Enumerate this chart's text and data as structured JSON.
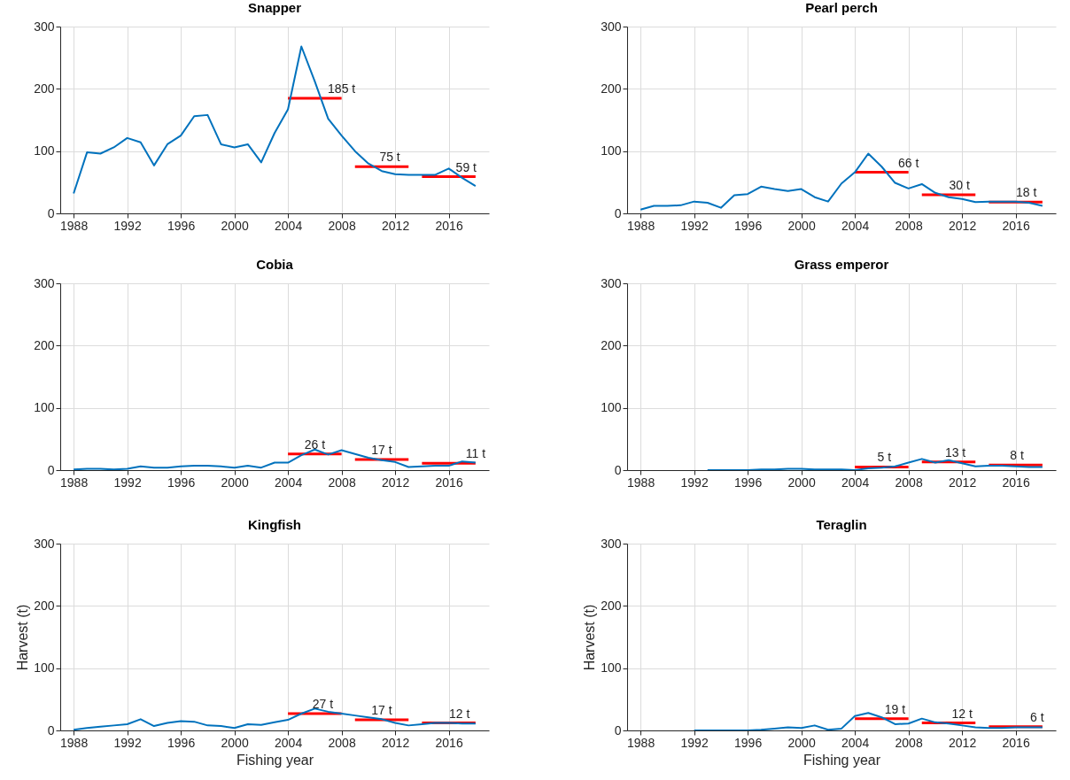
{
  "chart_data": [
    {
      "type": "line",
      "title": "Snapper",
      "x": [
        1988,
        1989,
        1990,
        1991,
        1992,
        1993,
        1994,
        1995,
        1996,
        1997,
        1998,
        1999,
        2000,
        2001,
        2002,
        2003,
        2004,
        2005,
        2006,
        2007,
        2008,
        2009,
        2010,
        2011,
        2012,
        2013,
        2014,
        2015,
        2016,
        2017,
        2018
      ],
      "xlim": [
        1987,
        2019
      ],
      "xticks": [
        1988,
        1992,
        1996,
        2000,
        2004,
        2008,
        2012,
        2016
      ],
      "ylim": [
        0,
        300
      ],
      "yticks": [
        0,
        100,
        200,
        300
      ],
      "grid": true,
      "series": [
        {
          "color": "#0072bd",
          "values": [
            32,
            98,
            96,
            106,
            121,
            114,
            77,
            111,
            125,
            156,
            158,
            111,
            106,
            111,
            82,
            129,
            167,
            268,
            212,
            152,
            125,
            100,
            80,
            68,
            63,
            62,
            62,
            62,
            72,
            57,
            44
          ]
        },
        {
          "type": "line",
          "color": "#ff0000",
          "x": [
            2004,
            2008
          ],
          "values": [
            185,
            185
          ]
        },
        {
          "type": "line",
          "color": "#ff0000",
          "x": [
            2009,
            2013
          ],
          "values": [
            75,
            75
          ]
        },
        {
          "type": "line",
          "color": "#ff0000",
          "x": [
            2014,
            2018
          ],
          "values": [
            59,
            59
          ]
        }
      ],
      "annotations": [
        {
          "text": "185 t",
          "x": 2008,
          "y": 185
        },
        {
          "text": "75 t",
          "x": 2011.6,
          "y": 75
        },
        {
          "text": "59 t",
          "x": 2017.3,
          "y": 59
        }
      ]
    },
    {
      "type": "line",
      "title": "Pearl perch",
      "x": [
        1988,
        1989,
        1990,
        1991,
        1992,
        1993,
        1994,
        1995,
        1996,
        1997,
        1998,
        1999,
        2000,
        2001,
        2002,
        2003,
        2004,
        2005,
        2006,
        2007,
        2008,
        2009,
        2010,
        2011,
        2012,
        2013,
        2014,
        2015,
        2016,
        2017,
        2018
      ],
      "xlim": [
        1987,
        2019
      ],
      "xticks": [
        1988,
        1992,
        1996,
        2000,
        2004,
        2008,
        2012,
        2016
      ],
      "ylim": [
        0,
        300
      ],
      "yticks": [
        0,
        100,
        200,
        300
      ],
      "grid": true,
      "series": [
        {
          "color": "#0072bd",
          "values": [
            6,
            12,
            12,
            13,
            19,
            17,
            9,
            29,
            31,
            43,
            39,
            36,
            39,
            26,
            19,
            48,
            66,
            96,
            75,
            49,
            40,
            47,
            33,
            26,
            23,
            18,
            19,
            19,
            19,
            17,
            12
          ]
        },
        {
          "type": "line",
          "color": "#ff0000",
          "x": [
            2004,
            2008
          ],
          "values": [
            66,
            66
          ]
        },
        {
          "type": "line",
          "color": "#ff0000",
          "x": [
            2009,
            2013
          ],
          "values": [
            30,
            30
          ]
        },
        {
          "type": "line",
          "color": "#ff0000",
          "x": [
            2014,
            2018
          ],
          "values": [
            18,
            18
          ]
        }
      ],
      "annotations": [
        {
          "text": "66 t",
          "x": 2008,
          "y": 66
        },
        {
          "text": "30 t",
          "x": 2011.8,
          "y": 30
        },
        {
          "text": "18 t",
          "x": 2016.8,
          "y": 18
        }
      ]
    },
    {
      "type": "line",
      "title": "Cobia",
      "x": [
        1988,
        1989,
        1990,
        1991,
        1992,
        1993,
        1994,
        1995,
        1996,
        1997,
        1998,
        1999,
        2000,
        2001,
        2002,
        2003,
        2004,
        2005,
        2006,
        2007,
        2008,
        2009,
        2010,
        2011,
        2012,
        2013,
        2014,
        2015,
        2016,
        2017,
        2018
      ],
      "xlim": [
        1987,
        2019
      ],
      "xticks": [
        1988,
        1992,
        1996,
        2000,
        2004,
        2008,
        2012,
        2016
      ],
      "ylim": [
        0,
        300
      ],
      "yticks": [
        0,
        100,
        200,
        300
      ],
      "grid": true,
      "series": [
        {
          "color": "#0072bd",
          "values": [
            1,
            2,
            2,
            1,
            2,
            6,
            4,
            4,
            6,
            7,
            7,
            6,
            4,
            7,
            4,
            12,
            12,
            24,
            33,
            25,
            32,
            26,
            20,
            16,
            13,
            5,
            6,
            7,
            7,
            14,
            12
          ]
        },
        {
          "type": "line",
          "color": "#ff0000",
          "x": [
            2004,
            2008
          ],
          "values": [
            26,
            26
          ]
        },
        {
          "type": "line",
          "color": "#ff0000",
          "x": [
            2009,
            2013
          ],
          "values": [
            17,
            17
          ]
        },
        {
          "type": "line",
          "color": "#ff0000",
          "x": [
            2014,
            2018
          ],
          "values": [
            11,
            11
          ]
        }
      ],
      "annotations": [
        {
          "text": "26 t",
          "x": 2006,
          "y": 26
        },
        {
          "text": "17 t",
          "x": 2011,
          "y": 17
        },
        {
          "text": "11 t",
          "x": 2018,
          "y": 11
        }
      ]
    },
    {
      "type": "line",
      "title": "Grass emperor",
      "xlim": [
        1987,
        2019
      ],
      "xticks": [
        1988,
        1992,
        1996,
        2000,
        2004,
        2008,
        2012,
        2016
      ],
      "ylim": [
        0,
        300
      ],
      "yticks": [
        0,
        100,
        200,
        300
      ],
      "grid": true,
      "series": [
        {
          "color": "#0072bd",
          "x": [
            1993,
            1994,
            1995,
            1996,
            1997,
            1998,
            1999,
            2000,
            2001,
            2002,
            2003,
            2004,
            2005,
            2006,
            2007,
            2008,
            2009,
            2010,
            2011,
            2012,
            2013,
            2014,
            2015,
            2016,
            2017,
            2018
          ],
          "values": [
            0,
            0,
            0,
            0,
            1,
            1,
            2,
            2,
            1,
            1,
            1,
            0,
            3,
            4,
            6,
            12,
            18,
            12,
            16,
            11,
            6,
            7,
            7,
            6,
            5,
            5
          ]
        },
        {
          "type": "line",
          "color": "#ff0000",
          "x": [
            2004,
            2008
          ],
          "values": [
            5,
            5
          ]
        },
        {
          "type": "line",
          "color": "#ff0000",
          "x": [
            2009,
            2013
          ],
          "values": [
            13,
            13
          ]
        },
        {
          "type": "line",
          "color": "#ff0000",
          "x": [
            2014,
            2018
          ],
          "values": [
            8,
            8
          ]
        }
      ],
      "annotations": [
        {
          "text": "5 t",
          "x": 2006.2,
          "y": 5
        },
        {
          "text": "13 t",
          "x": 2011.5,
          "y": 13
        },
        {
          "text": "8 t",
          "x": 2016.1,
          "y": 8
        }
      ]
    },
    {
      "type": "line",
      "title": "Kingfish",
      "xlabel": "Fishing year",
      "ylabel": "Harvest (t)",
      "x": [
        1988,
        1989,
        1990,
        1991,
        1992,
        1993,
        1994,
        1995,
        1996,
        1997,
        1998,
        1999,
        2000,
        2001,
        2002,
        2003,
        2004,
        2005,
        2006,
        2007,
        2008,
        2009,
        2010,
        2011,
        2012,
        2013,
        2014,
        2015,
        2016,
        2017,
        2018
      ],
      "xlim": [
        1987,
        2019
      ],
      "xticks": [
        1988,
        1992,
        1996,
        2000,
        2004,
        2008,
        2012,
        2016
      ],
      "ylim": [
        0,
        300
      ],
      "yticks": [
        0,
        100,
        200,
        300
      ],
      "grid": true,
      "series": [
        {
          "color": "#0072bd",
          "values": [
            1,
            4,
            6,
            8,
            10,
            18,
            7,
            12,
            15,
            14,
            8,
            7,
            4,
            10,
            9,
            13,
            17,
            27,
            35,
            30,
            27,
            24,
            21,
            18,
            12,
            8,
            10,
            12,
            12,
            11,
            11
          ]
        },
        {
          "type": "line",
          "color": "#ff0000",
          "x": [
            2004,
            2008
          ],
          "values": [
            27,
            27
          ]
        },
        {
          "type": "line",
          "color": "#ff0000",
          "x": [
            2009,
            2013
          ],
          "values": [
            17,
            17
          ]
        },
        {
          "type": "line",
          "color": "#ff0000",
          "x": [
            2014,
            2018
          ],
          "values": [
            12,
            12
          ]
        }
      ],
      "annotations": [
        {
          "text": "27 t",
          "x": 2006.6,
          "y": 27
        },
        {
          "text": "17 t",
          "x": 2011,
          "y": 17
        },
        {
          "text": "12 t",
          "x": 2016.8,
          "y": 12
        }
      ]
    },
    {
      "type": "line",
      "title": "Teraglin",
      "xlabel": "Fishing year",
      "ylabel": "Harvest (t)",
      "xlim": [
        1987,
        2019
      ],
      "xticks": [
        1988,
        1992,
        1996,
        2000,
        2004,
        2008,
        2012,
        2016
      ],
      "ylim": [
        0,
        300
      ],
      "yticks": [
        0,
        100,
        200,
        300
      ],
      "grid": true,
      "series": [
        {
          "color": "#0072bd",
          "x": [
            1992,
            1993,
            1994,
            1995,
            1996,
            1997,
            1998,
            1999,
            2000,
            2001,
            2002,
            2003,
            2004,
            2005,
            2006,
            2007,
            2008,
            2009,
            2010,
            2011,
            2012,
            2013,
            2014,
            2015,
            2016,
            2017,
            2018
          ],
          "values": [
            0,
            0,
            0,
            0,
            0,
            1,
            3,
            5,
            4,
            8,
            1,
            3,
            23,
            28,
            21,
            10,
            11,
            19,
            13,
            11,
            8,
            5,
            4,
            4,
            5,
            5,
            5
          ]
        },
        {
          "type": "line",
          "color": "#ff0000",
          "x": [
            2004,
            2008
          ],
          "values": [
            19,
            19
          ]
        },
        {
          "type": "line",
          "color": "#ff0000",
          "x": [
            2009,
            2013
          ],
          "values": [
            12,
            12
          ]
        },
        {
          "type": "line",
          "color": "#ff0000",
          "x": [
            2014,
            2018
          ],
          "values": [
            6,
            6
          ]
        }
      ],
      "annotations": [
        {
          "text": "19 t",
          "x": 2007,
          "y": 19
        },
        {
          "text": "12 t",
          "x": 2012,
          "y": 12
        },
        {
          "text": "6 t",
          "x": 2017.6,
          "y": 6
        }
      ]
    }
  ]
}
